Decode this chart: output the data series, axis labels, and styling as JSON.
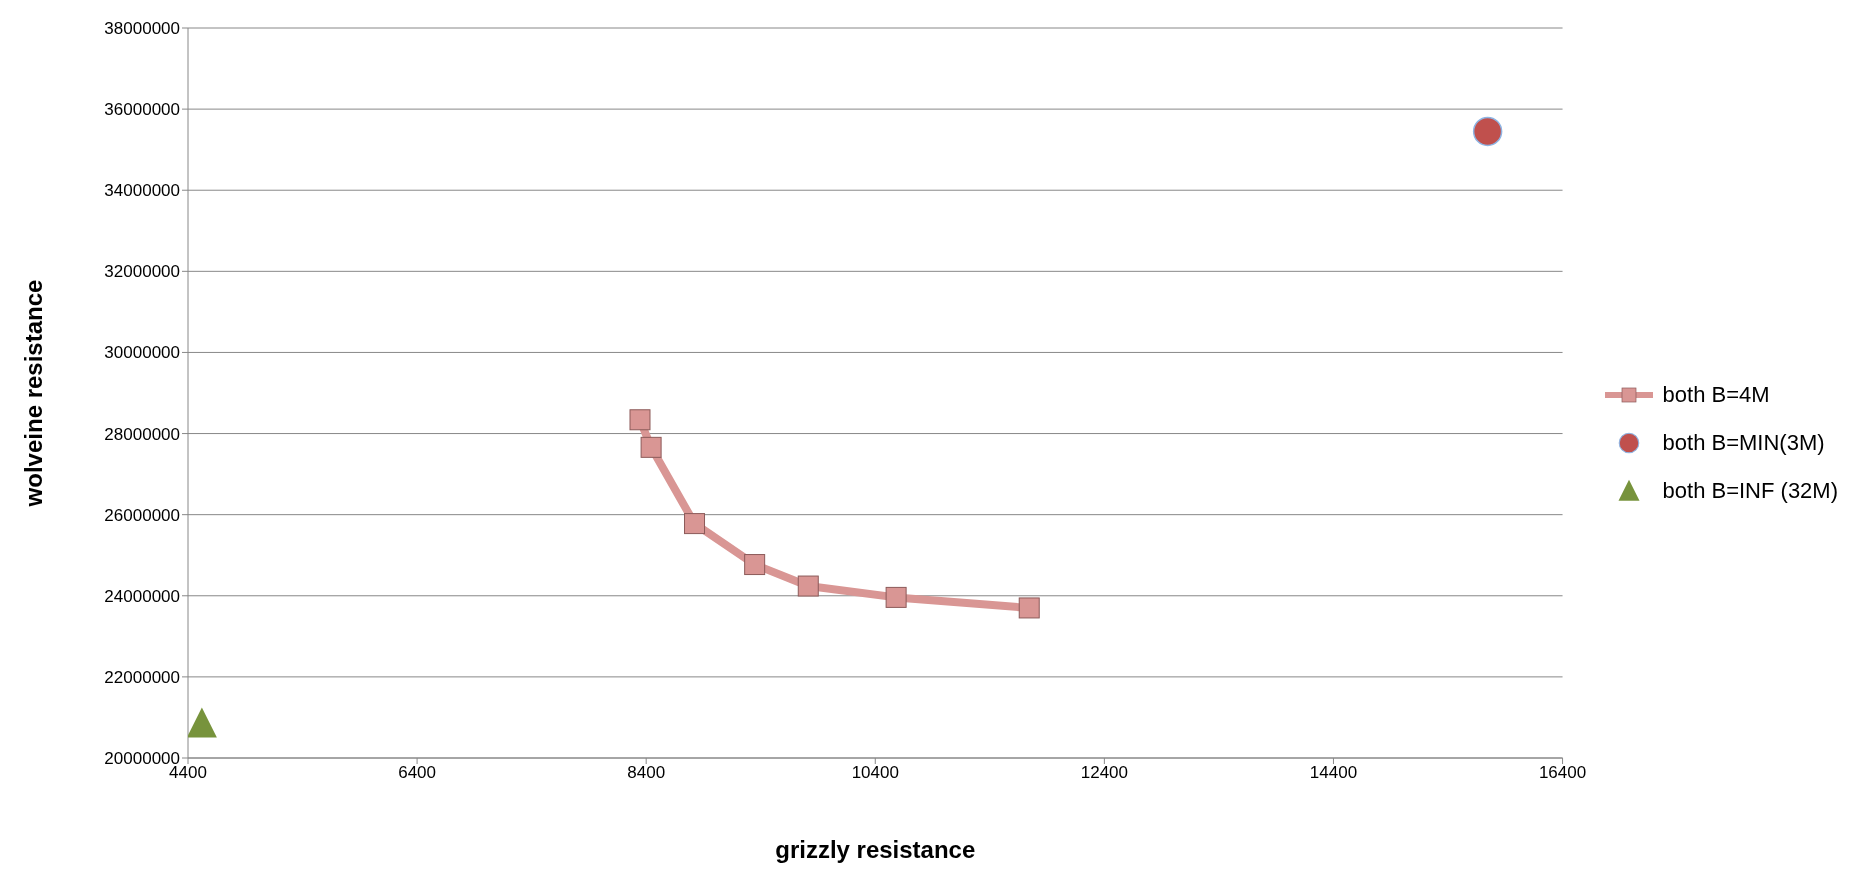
{
  "chart_data": {
    "type": "scatter",
    "xlabel": "grizzly resistance",
    "ylabel": "wolveine resistance",
    "xlim": [
      4400,
      16400
    ],
    "xticks": [
      4400,
      6400,
      8400,
      10400,
      12400,
      14400,
      16400
    ],
    "ylim": [
      20000000,
      38000000
    ],
    "yticks": [
      20000000,
      22000000,
      24000000,
      26000000,
      28000000,
      30000000,
      32000000,
      34000000,
      36000000,
      38000000
    ],
    "grid": "y",
    "legend": "right",
    "series": [
      {
        "name": "both B=4M",
        "type": "line",
        "marker": "square",
        "color": "#d99694",
        "x": [
          8346,
          8443,
          8822,
          9347,
          9815,
          10582,
          11744
        ],
        "values": [
          28340000,
          27660000,
          25780000,
          24770000,
          24240000,
          23960000,
          23700000
        ]
      },
      {
        "name": "both B=MIN(3M)",
        "type": "scatter",
        "marker": "circle",
        "color": "#c0504d",
        "x": [
          15746
        ],
        "values": [
          35450000
        ]
      },
      {
        "name": "both B=INF (32M)",
        "type": "scatter",
        "marker": "triangle",
        "color": "#77933c",
        "x": [
          4521
        ],
        "values": [
          20850000
        ]
      }
    ]
  }
}
